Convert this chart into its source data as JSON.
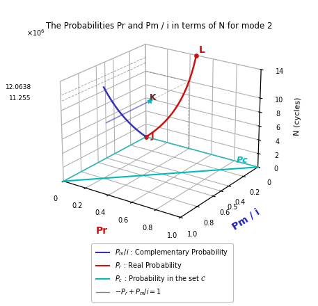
{
  "title": "The Probabilities Pr and Pm / i in terms of N for mode 2",
  "xlabel": "Pr",
  "ylabel": "Pm / i",
  "zlabel": "N (cycles)",
  "N_max": 14000000,
  "N_special1": 12063800,
  "N_special2": 11255000,
  "N_K": 10000000,
  "Pr_K": 0.17,
  "Pm_K": 0.17,
  "tau_blue": 2500000,
  "colors": {
    "blue_curve": "#3333bb",
    "red_curve": "#cc1111",
    "cyan_curve": "#00bbbb",
    "grid": "#aaaaaa",
    "dashed": "#888888",
    "xlabel_color": "#cc1111",
    "ylabel_color": "#2222bb",
    "Pc_label": "#00bbbb",
    "point_label_red": "#cc1111",
    "point_label_dark": "#662222"
  },
  "elev": 22,
  "azim": -55,
  "xticks": [
    0,
    0.2,
    0.4,
    0.6,
    0.8,
    1.0
  ],
  "yticks": [
    0,
    0.2,
    0.4,
    0.5,
    0.6,
    0.8,
    1.0
  ],
  "zticks": [
    0,
    2000000,
    4000000,
    6000000,
    8000000,
    10000000,
    14000000
  ],
  "zticklabels": [
    "0",
    "2",
    "4",
    "6",
    "8",
    "10",
    "14"
  ]
}
